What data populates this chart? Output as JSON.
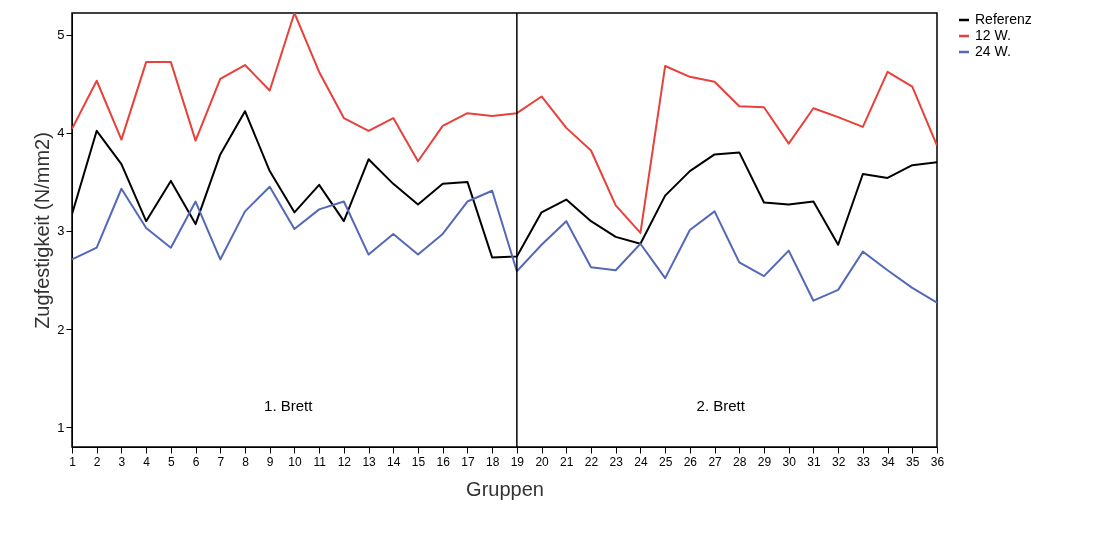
{
  "chart_data": {
    "type": "line",
    "xlabel": "Gruppen",
    "ylabel": "Zugfestigkeit (N/mm2)",
    "x": [
      1,
      2,
      3,
      4,
      5,
      6,
      7,
      8,
      9,
      10,
      11,
      12,
      13,
      14,
      15,
      16,
      17,
      18,
      19,
      20,
      21,
      22,
      23,
      24,
      25,
      26,
      27,
      28,
      29,
      30,
      31,
      32,
      33,
      34,
      35,
      36
    ],
    "series": [
      {
        "name": "Referenz",
        "color": "#000000",
        "values": [
          3.17,
          4.02,
          3.68,
          3.1,
          3.51,
          3.07,
          3.78,
          4.22,
          3.61,
          3.19,
          3.47,
          3.1,
          3.73,
          3.48,
          3.27,
          3.48,
          3.5,
          2.73,
          2.74,
          3.19,
          3.32,
          3.1,
          2.94,
          2.87,
          3.36,
          3.61,
          3.78,
          3.8,
          3.29,
          3.27,
          3.3,
          2.86,
          3.58,
          3.54,
          3.67,
          3.7
        ]
      },
      {
        "name": "12 W.",
        "color": "#e8403a",
        "values": [
          4.04,
          4.53,
          3.93,
          4.72,
          4.72,
          3.92,
          4.55,
          4.69,
          4.43,
          5.22,
          4.62,
          4.15,
          4.02,
          4.15,
          3.71,
          4.07,
          4.2,
          4.17,
          4.2,
          4.37,
          4.05,
          3.82,
          3.26,
          2.98,
          4.68,
          4.57,
          4.52,
          4.27,
          4.26,
          3.89,
          4.25,
          4.16,
          4.06,
          4.62,
          4.47,
          3.87
        ]
      },
      {
        "name": "24 W.",
        "color": "#5468b8",
        "values": [
          2.71,
          2.83,
          3.43,
          3.03,
          2.83,
          3.3,
          2.71,
          3.2,
          3.45,
          3.02,
          3.22,
          3.3,
          2.76,
          2.97,
          2.76,
          2.97,
          3.3,
          3.41,
          2.59,
          2.86,
          3.1,
          2.63,
          2.6,
          2.87,
          2.52,
          3.01,
          3.2,
          2.68,
          2.54,
          2.8,
          2.29,
          2.4,
          2.79,
          2.6,
          2.42,
          2.27
        ]
      }
    ],
    "xlim": [
      1,
      36
    ],
    "xticks": [
      1,
      2,
      3,
      4,
      5,
      6,
      7,
      8,
      9,
      10,
      11,
      12,
      13,
      14,
      15,
      16,
      17,
      18,
      19,
      20,
      21,
      22,
      23,
      24,
      25,
      26,
      27,
      28,
      29,
      30,
      31,
      32,
      33,
      34,
      35,
      36
    ],
    "ylim": [
      0.8,
      5.22
    ],
    "yticks": [
      1,
      2,
      3,
      4,
      5
    ],
    "ref_lines": [
      {
        "axis": "x",
        "value": 19,
        "color": "#000000"
      }
    ],
    "annotations": [
      "1. Brett",
      "2. Brett"
    ],
    "grid": false,
    "legend": "top right",
    "line_style": "solid",
    "marker": "none"
  }
}
